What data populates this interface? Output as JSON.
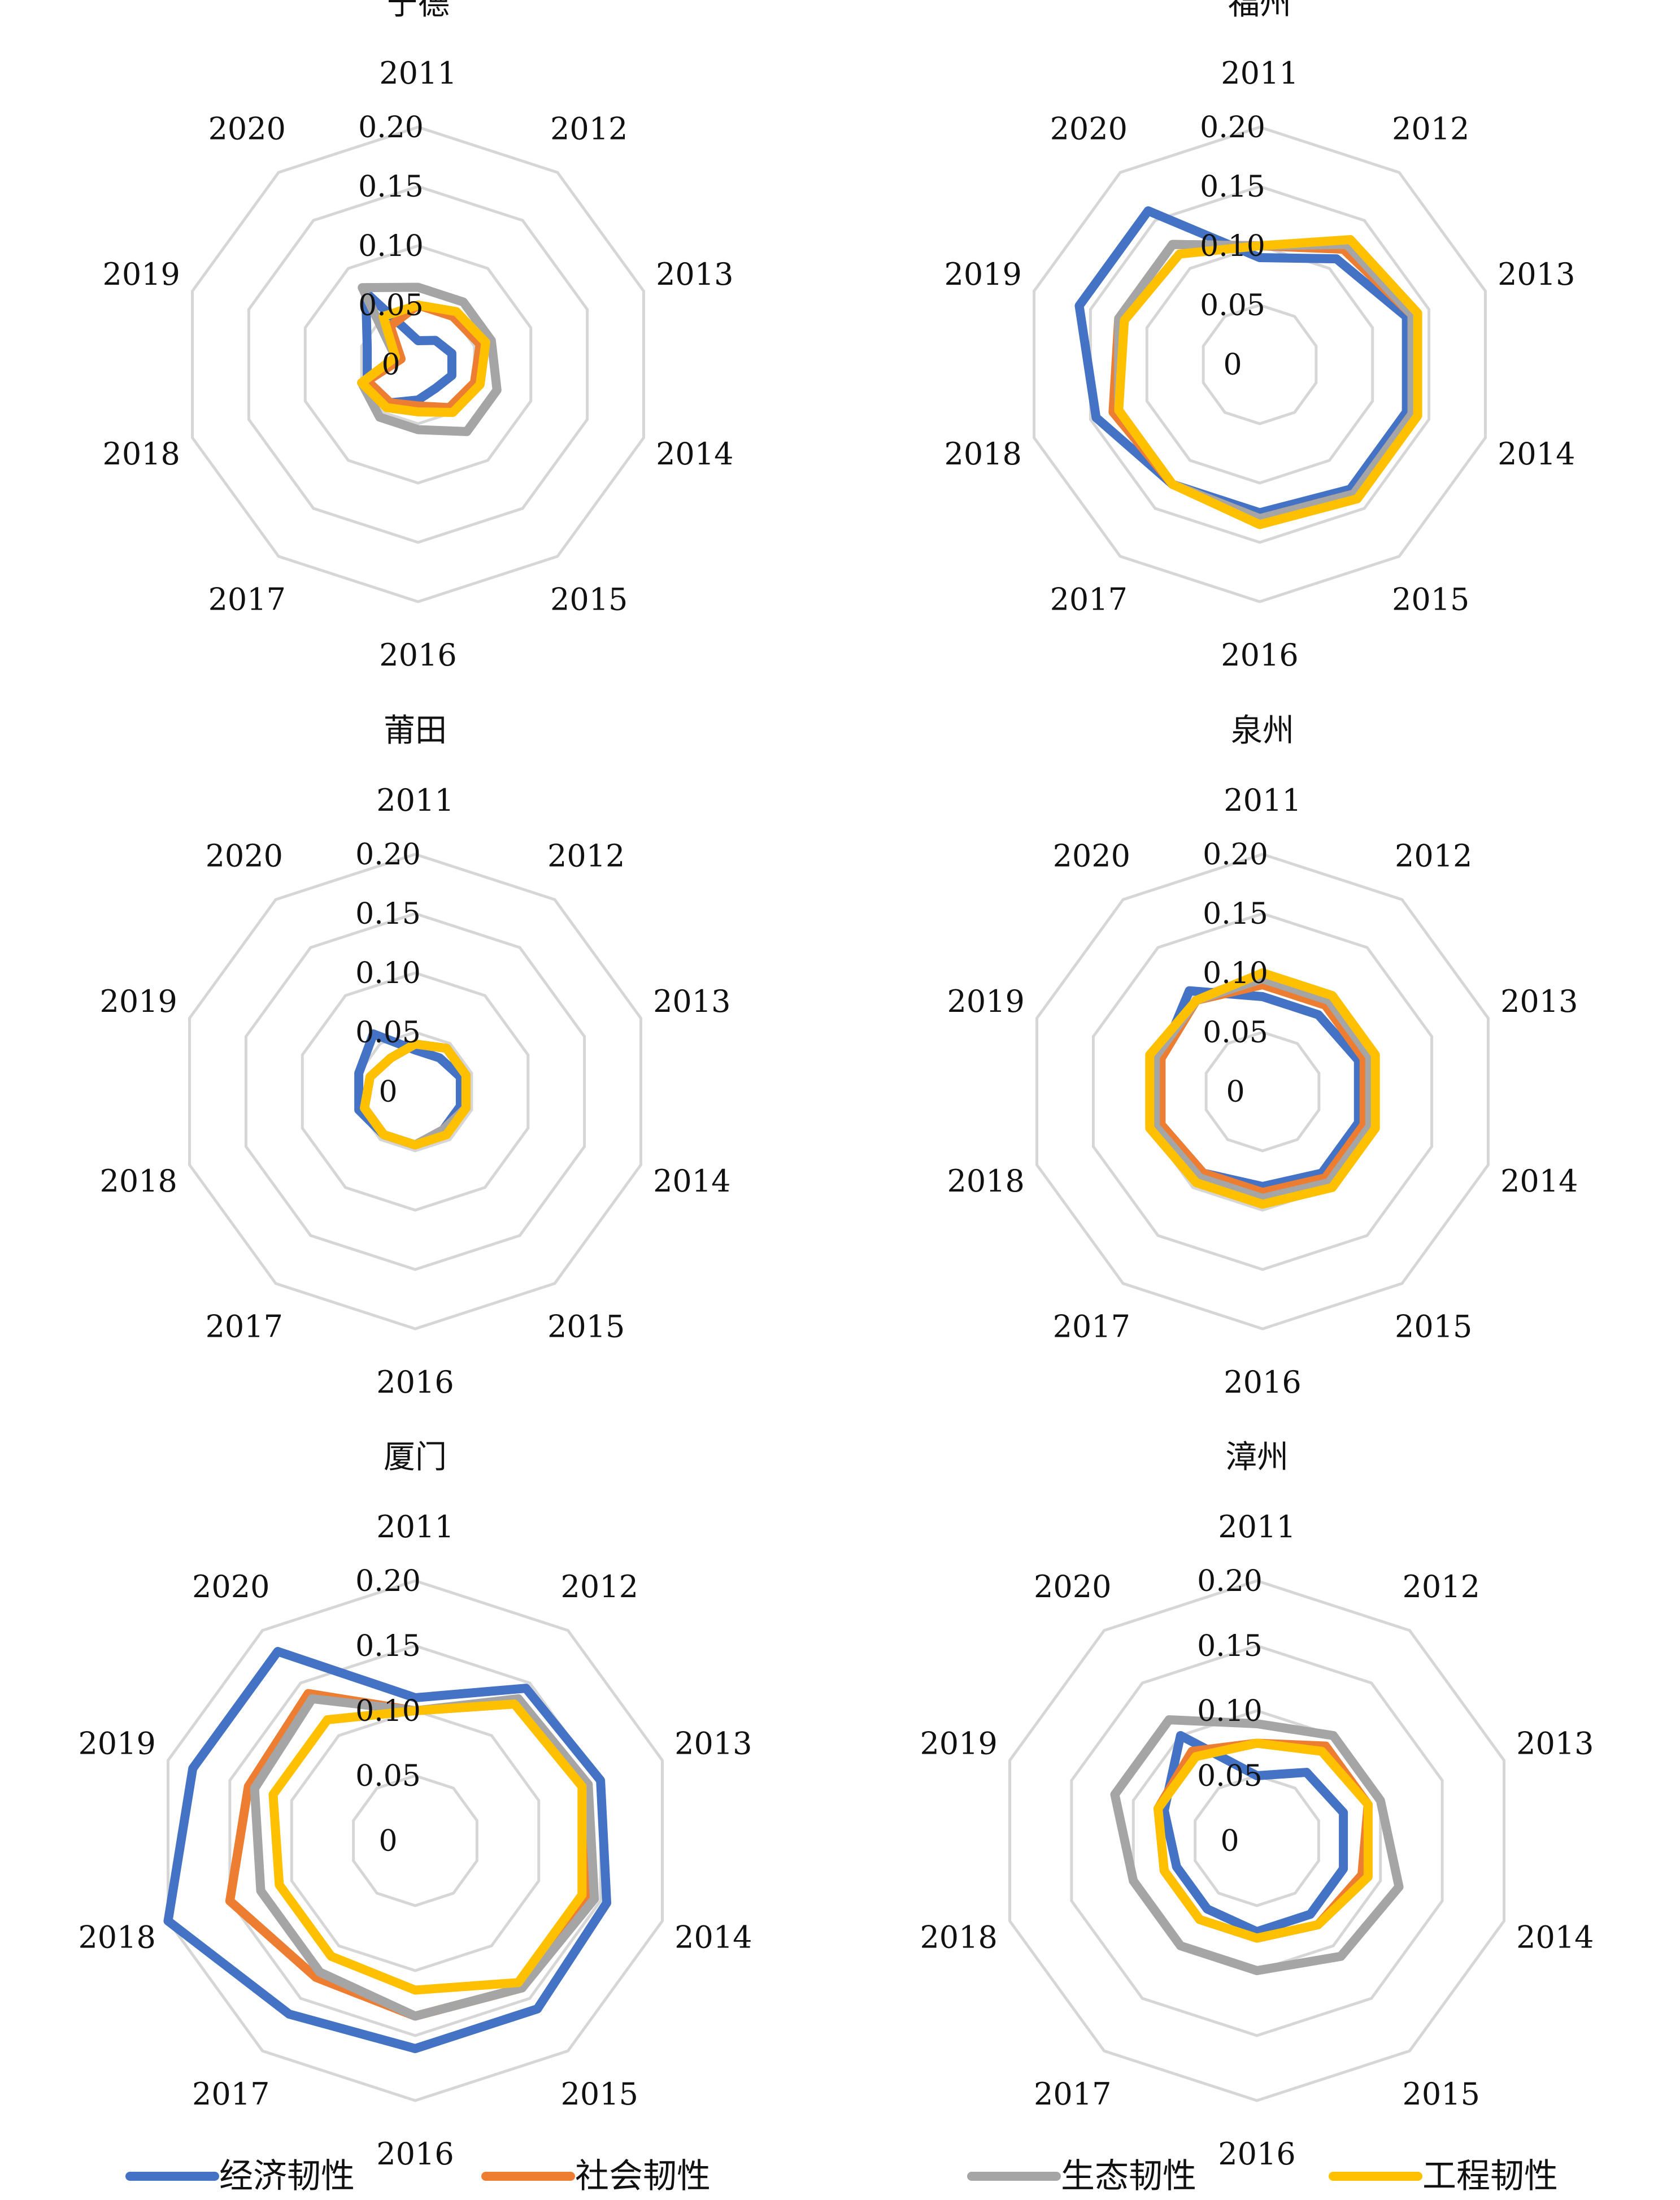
{
  "legend": {
    "items": [
      {
        "label": "经济韧性",
        "color": "#4472C4"
      },
      {
        "label": "社会韧性",
        "color": "#ED7D31"
      },
      {
        "label": "生态韧性",
        "color": "#A5A5A5"
      },
      {
        "label": "工程韧性",
        "color": "#FFC000"
      }
    ]
  },
  "chart_data": [
    {
      "type": "radar",
      "title": "宁德",
      "categories": [
        "2011",
        "2012",
        "2013",
        "2014",
        "2015",
        "2016",
        "2017",
        "2018",
        "2019",
        "2020"
      ],
      "rlim": [
        0,
        0.2
      ],
      "ticks": [
        0,
        0.05,
        0.1,
        0.15,
        0.2
      ],
      "tick_labels": [
        "0",
        "0.05",
        "0.10",
        "0.15",
        "0.20"
      ],
      "series": [
        {
          "name": "经济韧性",
          "values": [
            0.02,
            0.025,
            0.03,
            0.03,
            0.025,
            0.03,
            0.04,
            0.045,
            0.045,
            0.075
          ]
        },
        {
          "name": "社会韧性",
          "values": [
            0.05,
            0.05,
            0.055,
            0.05,
            0.045,
            0.035,
            0.04,
            0.045,
            0.015,
            0.04
          ]
        },
        {
          "name": "生态韧性",
          "values": [
            0.065,
            0.065,
            0.065,
            0.07,
            0.07,
            0.055,
            0.055,
            0.05,
            0.02,
            0.08
          ]
        },
        {
          "name": "工程韧性",
          "values": [
            0.05,
            0.055,
            0.06,
            0.055,
            0.05,
            0.04,
            0.045,
            0.05,
            0.02,
            0.05
          ]
        }
      ]
    },
    {
      "type": "radar",
      "title": "福州",
      "categories": [
        "2011",
        "2012",
        "2013",
        "2014",
        "2015",
        "2016",
        "2017",
        "2018",
        "2019",
        "2020"
      ],
      "rlim": [
        0,
        0.2
      ],
      "ticks": [
        0,
        0.05,
        0.1,
        0.15,
        0.2
      ],
      "tick_labels": [
        "0",
        "0.05",
        "0.10",
        "0.15",
        "0.20"
      ],
      "series": [
        {
          "name": "经济韧性",
          "values": [
            0.09,
            0.11,
            0.13,
            0.13,
            0.13,
            0.125,
            0.125,
            0.145,
            0.16,
            0.16
          ]
        },
        {
          "name": "社会韧性",
          "values": [
            0.1,
            0.12,
            0.135,
            0.135,
            0.135,
            0.13,
            0.125,
            0.13,
            0.125,
            0.125
          ]
        },
        {
          "name": "生态韧性",
          "values": [
            0.1,
            0.125,
            0.135,
            0.135,
            0.135,
            0.13,
            0.125,
            0.125,
            0.125,
            0.125
          ]
        },
        {
          "name": "工程韧性",
          "values": [
            0.1,
            0.13,
            0.14,
            0.14,
            0.14,
            0.135,
            0.125,
            0.125,
            0.12,
            0.115
          ]
        }
      ]
    },
    {
      "type": "radar",
      "title": "莆田",
      "categories": [
        "2011",
        "2012",
        "2013",
        "2014",
        "2015",
        "2016",
        "2017",
        "2018",
        "2019",
        "2020"
      ],
      "rlim": [
        0,
        0.2
      ],
      "ticks": [
        0,
        0.05,
        0.1,
        0.15,
        0.2
      ],
      "tick_labels": [
        "0",
        "0.05",
        "0.10",
        "0.15",
        "0.20"
      ],
      "series": [
        {
          "name": "经济韧性",
          "values": [
            0.035,
            0.035,
            0.04,
            0.04,
            0.04,
            0.045,
            0.045,
            0.05,
            0.05,
            0.06
          ]
        },
        {
          "name": "社会韧性",
          "values": [
            0.04,
            0.045,
            0.045,
            0.045,
            0.04,
            0.045,
            0.045,
            0.045,
            0.04,
            0.035
          ]
        },
        {
          "name": "生态韧性",
          "values": [
            0.04,
            0.045,
            0.045,
            0.045,
            0.04,
            0.045,
            0.045,
            0.045,
            0.04,
            0.035
          ]
        },
        {
          "name": "工程韧性",
          "values": [
            0.04,
            0.045,
            0.045,
            0.045,
            0.045,
            0.045,
            0.045,
            0.045,
            0.04,
            0.035
          ]
        }
      ]
    },
    {
      "type": "radar",
      "title": "泉州",
      "categories": [
        "2011",
        "2012",
        "2013",
        "2014",
        "2015",
        "2016",
        "2017",
        "2018",
        "2019",
        "2020"
      ],
      "rlim": [
        0,
        0.2
      ],
      "ticks": [
        0,
        0.05,
        0.1,
        0.15,
        0.2
      ],
      "tick_labels": [
        "0",
        "0.05",
        "0.10",
        "0.15",
        "0.20"
      ],
      "series": [
        {
          "name": "经济韧性",
          "values": [
            0.08,
            0.08,
            0.085,
            0.085,
            0.085,
            0.08,
            0.085,
            0.09,
            0.09,
            0.105
          ]
        },
        {
          "name": "社会韧性",
          "values": [
            0.09,
            0.09,
            0.09,
            0.09,
            0.09,
            0.085,
            0.085,
            0.09,
            0.09,
            0.095
          ]
        },
        {
          "name": "生态韧性",
          "values": [
            0.095,
            0.095,
            0.095,
            0.095,
            0.095,
            0.09,
            0.09,
            0.095,
            0.095,
            0.095
          ]
        },
        {
          "name": "工程韧性",
          "values": [
            0.1,
            0.1,
            0.1,
            0.1,
            0.1,
            0.095,
            0.095,
            0.1,
            0.1,
            0.095
          ]
        }
      ]
    },
    {
      "type": "radar",
      "title": "厦门",
      "categories": [
        "2011",
        "2012",
        "2013",
        "2014",
        "2015",
        "2016",
        "2017",
        "2018",
        "2019",
        "2020"
      ],
      "rlim": [
        0,
        0.2
      ],
      "ticks": [
        0,
        0.05,
        0.1,
        0.15,
        0.2
      ],
      "tick_labels": [
        "0",
        "0.05",
        "0.10",
        "0.15",
        "0.20"
      ],
      "series": [
        {
          "name": "经济韧性",
          "values": [
            0.11,
            0.145,
            0.15,
            0.155,
            0.16,
            0.16,
            0.165,
            0.2,
            0.18,
            0.18
          ]
        },
        {
          "name": "社会韧性",
          "values": [
            0.1,
            0.13,
            0.14,
            0.14,
            0.14,
            0.135,
            0.13,
            0.15,
            0.135,
            0.14
          ]
        },
        {
          "name": "生态韧性",
          "values": [
            0.1,
            0.135,
            0.14,
            0.145,
            0.14,
            0.135,
            0.125,
            0.125,
            0.13,
            0.135
          ]
        },
        {
          "name": "工程韧性",
          "values": [
            0.1,
            0.13,
            0.135,
            0.135,
            0.135,
            0.115,
            0.11,
            0.11,
            0.115,
            0.115
          ]
        }
      ]
    },
    {
      "type": "radar",
      "title": "漳州",
      "categories": [
        "2011",
        "2012",
        "2013",
        "2014",
        "2015",
        "2016",
        "2017",
        "2018",
        "2019",
        "2020"
      ],
      "rlim": [
        0,
        0.2
      ],
      "ticks": [
        0,
        0.05,
        0.1,
        0.15,
        0.2
      ],
      "tick_labels": [
        "0",
        "0.05",
        "0.10",
        "0.15",
        "0.20"
      ],
      "series": [
        {
          "name": "经济韧性",
          "values": [
            0.05,
            0.065,
            0.07,
            0.07,
            0.07,
            0.07,
            0.065,
            0.065,
            0.075,
            0.1
          ]
        },
        {
          "name": "社会韧性",
          "values": [
            0.075,
            0.09,
            0.09,
            0.085,
            0.08,
            0.075,
            0.075,
            0.075,
            0.08,
            0.085
          ]
        },
        {
          "name": "生态韧性",
          "values": [
            0.09,
            0.1,
            0.1,
            0.115,
            0.11,
            0.1,
            0.1,
            0.1,
            0.115,
            0.115
          ]
        },
        {
          "name": "工程韧性",
          "values": [
            0.075,
            0.085,
            0.09,
            0.09,
            0.08,
            0.075,
            0.075,
            0.075,
            0.08,
            0.08
          ]
        }
      ]
    }
  ]
}
